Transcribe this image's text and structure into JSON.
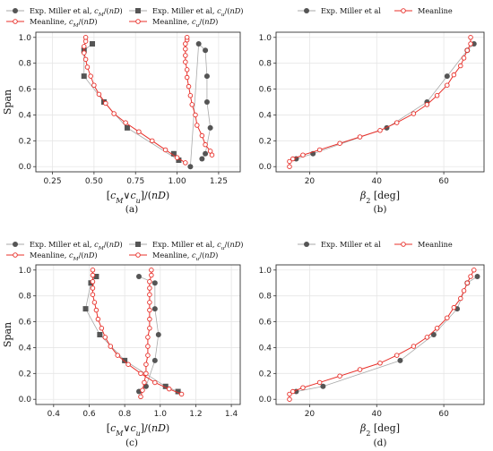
{
  "chart_data": [
    {
      "panel_label": "(a)",
      "type": "line",
      "xlabel": "[c_M∨c_u]/(nD)",
      "ylabel": "Span",
      "xlim": [
        0.15,
        1.38
      ],
      "ylim": [
        -0.04,
        1.04
      ],
      "xticks": [
        "0.25",
        "0.50",
        "0.75",
        "1.00",
        "1.25"
      ],
      "xtick_values": [
        0.25,
        0.5,
        0.75,
        1.0,
        1.25
      ],
      "yticks": [
        "0.0",
        "0.2",
        "0.4",
        "0.6",
        "0.8",
        "1.0"
      ],
      "ytick_values": [
        0,
        0.2,
        0.4,
        0.6,
        0.8,
        1.0
      ],
      "grid": true,
      "legend": "top-center",
      "legend_cols": 2,
      "series": [
        {
          "name": "Exp. Miller et al, c_M/(nD)",
          "marker": "circle",
          "style": "exp",
          "x": [
            1.15,
            1.17,
            1.2,
            1.18,
            1.18,
            1.17,
            1.13,
            1.08
          ],
          "y": [
            0.06,
            0.1,
            0.3,
            0.5,
            0.7,
            0.9,
            0.95,
            0.0
          ]
        },
        {
          "name": "Exp. Miller et al, c_u/(nD)",
          "marker": "square",
          "style": "exp",
          "x": [
            0.98,
            1.01,
            0.7,
            0.56,
            0.44,
            0.44,
            0.49
          ],
          "y": [
            0.1,
            0.05,
            0.3,
            0.5,
            0.7,
            0.9,
            0.95
          ]
        },
        {
          "name": "Meanline, c_M/(nD)",
          "marker": "circle",
          "style": "meanline",
          "x": [
            1.21,
            1.2,
            1.17,
            1.15,
            1.12,
            1.11,
            1.09,
            1.08,
            1.07,
            1.06,
            1.06,
            1.05,
            1.05,
            1.05,
            1.05,
            1.06,
            1.06
          ],
          "y": [
            0.09,
            0.12,
            0.17,
            0.24,
            0.32,
            0.4,
            0.48,
            0.55,
            0.62,
            0.69,
            0.75,
            0.81,
            0.86,
            0.91,
            0.95,
            0.98,
            1.0
          ]
        },
        {
          "name": "Meanline, c_u/(nD)",
          "marker": "circle",
          "style": "meanline",
          "x": [
            1.05,
            1.0,
            0.93,
            0.85,
            0.77,
            0.69,
            0.62,
            0.57,
            0.53,
            0.5,
            0.48,
            0.46,
            0.45,
            0.44,
            0.44,
            0.45,
            0.45
          ],
          "y": [
            0.03,
            0.07,
            0.13,
            0.2,
            0.27,
            0.34,
            0.41,
            0.49,
            0.56,
            0.63,
            0.7,
            0.77,
            0.83,
            0.88,
            0.93,
            0.97,
            1.0
          ]
        }
      ]
    },
    {
      "panel_label": "(b)",
      "type": "line",
      "xlabel": "β_2 [deg]",
      "ylabel": "",
      "xlim": [
        10,
        72
      ],
      "ylim": [
        -0.04,
        1.04
      ],
      "xticks": [
        "20",
        "40",
        "60"
      ],
      "xtick_values": [
        20,
        40,
        60
      ],
      "yticks": [
        "0.0",
        "0.2",
        "0.4",
        "0.6",
        "0.8",
        "1.0"
      ],
      "ytick_values": [
        0,
        0.2,
        0.4,
        0.6,
        0.8,
        1.0
      ],
      "grid": true,
      "legend": "top-center",
      "legend_cols": 2,
      "series": [
        {
          "name": "Exp. Miller et al",
          "marker": "circle",
          "style": "exp",
          "x": [
            16,
            21,
            43,
            55,
            61,
            67,
            69
          ],
          "y": [
            0.06,
            0.1,
            0.3,
            0.5,
            0.7,
            0.9,
            0.95
          ]
        },
        {
          "name": "Meanline",
          "marker": "circle",
          "style": "meanline",
          "x": [
            14,
            14,
            15,
            18,
            23,
            29,
            35,
            41,
            46,
            51,
            55,
            58,
            61,
            63,
            65,
            66,
            67,
            68,
            68
          ],
          "y": [
            0.0,
            0.04,
            0.06,
            0.09,
            0.13,
            0.18,
            0.23,
            0.28,
            0.34,
            0.41,
            0.48,
            0.55,
            0.63,
            0.71,
            0.78,
            0.84,
            0.9,
            0.95,
            1.0
          ]
        }
      ]
    },
    {
      "panel_label": "(c)",
      "type": "line",
      "xlabel": "[c_M∨c_u]/(nD)",
      "ylabel": "Span",
      "xlim": [
        0.3,
        1.45
      ],
      "ylim": [
        -0.04,
        1.04
      ],
      "xticks": [
        "0.4",
        "0.6",
        "0.8",
        "1.0",
        "1.2",
        "1.4"
      ],
      "xtick_values": [
        0.4,
        0.6,
        0.8,
        1.0,
        1.2,
        1.4
      ],
      "yticks": [
        "0.0",
        "0.2",
        "0.4",
        "0.6",
        "0.8",
        "1.0"
      ],
      "ytick_values": [
        0,
        0.2,
        0.4,
        0.6,
        0.8,
        1.0
      ],
      "grid": true,
      "legend": "top-center",
      "legend_cols": 2,
      "series": [
        {
          "name": "Exp. Miller et al, c_M/(nD)",
          "marker": "circle",
          "style": "exp",
          "x": [
            0.88,
            0.92,
            0.97,
            0.99,
            0.97,
            0.97,
            0.88
          ],
          "y": [
            0.06,
            0.1,
            0.3,
            0.5,
            0.7,
            0.9,
            0.95
          ]
        },
        {
          "name": "Exp. Miller et al, c_u/(nD)",
          "marker": "square",
          "style": "exp",
          "x": [
            1.1,
            1.03,
            0.8,
            0.66,
            0.58,
            0.61,
            0.64
          ],
          "y": [
            0.06,
            0.1,
            0.3,
            0.5,
            0.7,
            0.9,
            0.95
          ]
        },
        {
          "name": "Meanline, c_M/(nD)",
          "marker": "circle",
          "style": "meanline",
          "x": [
            0.89,
            0.9,
            0.91,
            0.92,
            0.92,
            0.93,
            0.93,
            0.93,
            0.94,
            0.94,
            0.94,
            0.94,
            0.94,
            0.94,
            0.94,
            0.95,
            0.95
          ],
          "y": [
            0.02,
            0.07,
            0.13,
            0.2,
            0.27,
            0.34,
            0.41,
            0.48,
            0.55,
            0.62,
            0.69,
            0.75,
            0.81,
            0.86,
            0.91,
            0.96,
            1.0
          ]
        },
        {
          "name": "Meanline, c_u/(nD)",
          "marker": "circle",
          "style": "meanline",
          "x": [
            1.12,
            1.05,
            0.97,
            0.89,
            0.82,
            0.76,
            0.72,
            0.69,
            0.67,
            0.65,
            0.64,
            0.63,
            0.62,
            0.62,
            0.62,
            0.62,
            0.62
          ],
          "y": [
            0.04,
            0.08,
            0.13,
            0.2,
            0.27,
            0.34,
            0.41,
            0.48,
            0.55,
            0.62,
            0.69,
            0.75,
            0.81,
            0.86,
            0.91,
            0.96,
            1.0
          ]
        }
      ]
    },
    {
      "panel_label": "(d)",
      "type": "line",
      "xlabel": "β_2 [deg]",
      "ylabel": "",
      "xlim": [
        10,
        72
      ],
      "ylim": [
        -0.04,
        1.04
      ],
      "xticks": [
        "20",
        "40",
        "60"
      ],
      "xtick_values": [
        20,
        40,
        60
      ],
      "yticks": [
        "0.0",
        "0.2",
        "0.4",
        "0.6",
        "0.8",
        "1.0"
      ],
      "ytick_values": [
        0,
        0.2,
        0.4,
        0.6,
        0.8,
        1.0
      ],
      "grid": true,
      "legend": "top-center",
      "legend_cols": 2,
      "series": [
        {
          "name": "Exp. Miller et al",
          "marker": "circle",
          "style": "exp",
          "x": [
            16,
            24,
            47,
            57,
            64,
            67,
            70
          ],
          "y": [
            0.06,
            0.1,
            0.3,
            0.5,
            0.7,
            0.9,
            0.95
          ]
        },
        {
          "name": "Meanline",
          "marker": "circle",
          "style": "meanline",
          "x": [
            14,
            14,
            15,
            18,
            23,
            29,
            35,
            41,
            46,
            51,
            55,
            58,
            61,
            63,
            65,
            66,
            67,
            68,
            69
          ],
          "y": [
            0.0,
            0.04,
            0.06,
            0.09,
            0.13,
            0.18,
            0.23,
            0.28,
            0.34,
            0.41,
            0.48,
            0.55,
            0.63,
            0.71,
            0.78,
            0.84,
            0.9,
            0.95,
            1.0
          ]
        }
      ]
    }
  ],
  "style": {
    "exp_color": "#555555",
    "exp_line_color": "#aaaaaa",
    "meanline_color": "#e8302a",
    "grid_color": "#e6e6e6",
    "axis_color": "#333333"
  }
}
